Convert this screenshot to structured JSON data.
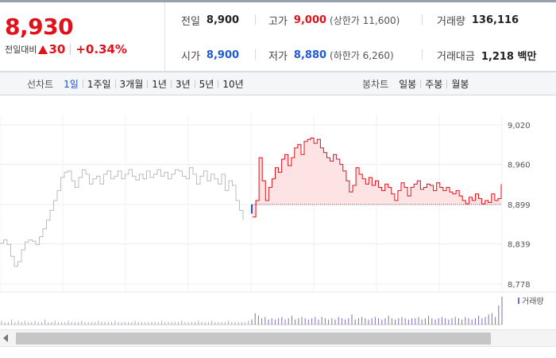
{
  "header": {
    "price": "8,930",
    "change_label": "전일대비",
    "change_icon": "up-triangle-icon",
    "change_amount": "30",
    "change_percent": "+0.34%",
    "prev_close_label": "전일",
    "prev_close": "8,900",
    "high_label": "고가",
    "high": "9,000",
    "upper_limit": "(상한가 11,600)",
    "volume_label": "거래량",
    "volume": "136,116",
    "open_label": "시가",
    "open": "8,900",
    "low_label": "저가",
    "low": "8,880",
    "lower_limit": "(하한가 6,260)",
    "trade_value_label": "거래대금",
    "trade_value": "1,218 백만"
  },
  "toolbar": {
    "line_chart_label": "선차트",
    "line_periods": [
      {
        "label": "1일",
        "active": true
      },
      {
        "label": "1주일",
        "active": false
      },
      {
        "label": "3개월",
        "active": false
      },
      {
        "label": "1년",
        "active": false
      },
      {
        "label": "3년",
        "active": false
      },
      {
        "label": "5년",
        "active": false
      },
      {
        "label": "10년",
        "active": false
      }
    ],
    "candle_chart_label": "봉차트",
    "candle_periods": [
      {
        "label": "일봉"
      },
      {
        "label": "주봉"
      },
      {
        "label": "월봉"
      }
    ]
  },
  "colors": {
    "up": "#e0111b",
    "down": "#1f5ad6",
    "prev_day_line": "#b9bcc0",
    "fill": "#fde3e3",
    "volume": "#7f6fb0"
  },
  "chart_data": {
    "type": "line",
    "title": "",
    "xlabel": "",
    "ylabel": "",
    "ylim": [
      8778,
      9020
    ],
    "yticks": [
      "9,020",
      "8,960",
      "8,899",
      "8,839",
      "8,778"
    ],
    "ytick_values": [
      9020,
      8960,
      8899,
      8839,
      8778
    ],
    "baseline": 8899,
    "legend": [
      {
        "name": "거래량",
        "placement": "right"
      }
    ],
    "grid": true,
    "series": [
      {
        "period": "previous",
        "values": [
          8840,
          8845,
          8838,
          8820,
          8805,
          8812,
          8830,
          8842,
          8845,
          8843,
          8838,
          8850,
          8862,
          8875,
          8890,
          8905,
          8920,
          8940,
          8948,
          8950,
          8935,
          8925,
          8940,
          8952,
          8945,
          8930,
          8938,
          8942,
          8930,
          8945,
          8950,
          8938,
          8942,
          8950,
          8938,
          8945,
          8952,
          8942,
          8936,
          8945,
          8938,
          8950,
          8940,
          8945,
          8952,
          8942,
          8948,
          8938,
          8945,
          8952,
          8950,
          8942,
          8938,
          8955,
          8945,
          8930,
          8942,
          8950,
          8935,
          8945,
          8938,
          8930,
          8945,
          8920,
          8935,
          8928,
          8905,
          8890,
          8875
        ]
      },
      {
        "period": "current",
        "values": [
          8880,
          8905,
          8970,
          8935,
          8905,
          8925,
          8938,
          8955,
          8948,
          8968,
          8975,
          8958,
          8970,
          8985,
          8990,
          8975,
          8995,
          8998,
          9000,
          8992,
          8998,
          8985,
          8978,
          8970,
          8965,
          8975,
          8968,
          8960,
          8950,
          8935,
          8918,
          8928,
          8955,
          8945,
          8938,
          8930,
          8940,
          8928,
          8935,
          8925,
          8920,
          8930,
          8925,
          8915,
          8905,
          8920,
          8932,
          8925,
          8912,
          8925,
          8930,
          8935,
          8922,
          8925,
          8930,
          8928,
          8920,
          8932,
          8925,
          8920,
          8925,
          8918,
          8915,
          8920,
          8912,
          8905,
          8900,
          8910,
          8905,
          8915,
          8908,
          8900,
          8905,
          8902,
          8915,
          8905,
          8908,
          8930
        ]
      }
    ],
    "volume": [
      3,
      2,
      2,
      4,
      2,
      3,
      2,
      3,
      2,
      2,
      3,
      2,
      2,
      4,
      2,
      2,
      3,
      2,
      2,
      2,
      3,
      2,
      2,
      2,
      3,
      2,
      2,
      2,
      2,
      3,
      2,
      2,
      2,
      2,
      3,
      2,
      2,
      2,
      2,
      2,
      3,
      2,
      2,
      2,
      2,
      2,
      2,
      2,
      3,
      2,
      2,
      2,
      2,
      2,
      3,
      2,
      2,
      2,
      2,
      3,
      2,
      2,
      2,
      3,
      2,
      2,
      2,
      2,
      3,
      2,
      2,
      2,
      2,
      2,
      3,
      4,
      9,
      7,
      5,
      6,
      4,
      5,
      4,
      5,
      6,
      4,
      5,
      7,
      4,
      5,
      6,
      5,
      4,
      5,
      6,
      4,
      6,
      5,
      4,
      5,
      4,
      6,
      5,
      4,
      5,
      8,
      4,
      5,
      6,
      5,
      4,
      5,
      6,
      5,
      4,
      5,
      7,
      5,
      4,
      5,
      6,
      5,
      4,
      5,
      5,
      6,
      4,
      5,
      7,
      5,
      4,
      5,
      6,
      5,
      4,
      5,
      6,
      5,
      4,
      6,
      5,
      4,
      5,
      7,
      5,
      6,
      8,
      9,
      6,
      15,
      22
    ]
  }
}
